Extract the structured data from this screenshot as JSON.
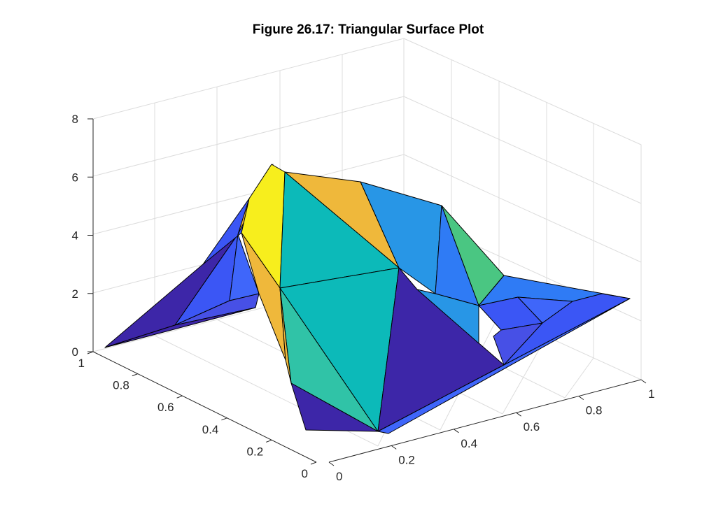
{
  "chart_data": {
    "type": "surface-3d",
    "title": "Figure 26.17: Triangular Surface Plot",
    "xlabel": "",
    "ylabel": "",
    "zlabel": "",
    "xlim": [
      0,
      1
    ],
    "ylim": [
      0,
      1
    ],
    "zlim": [
      0,
      8
    ],
    "x_ticks": [
      "0",
      "0.2",
      "0.4",
      "0.6",
      "0.8",
      "1"
    ],
    "y_ticks": [
      "0",
      "0.2",
      "0.4",
      "0.6",
      "0.8",
      "1"
    ],
    "z_ticks": [
      "0",
      "2",
      "4",
      "6",
      "8"
    ],
    "grid": true,
    "colormap": "parula",
    "colors": {
      "low": "#3d26a8",
      "mid_low": "#3b56f5",
      "mid": "#2896e6",
      "teal": "#0cbab9",
      "green": "#4ac682",
      "orange": "#efb83b",
      "high": "#f7ee1d"
    },
    "vertices": [
      {
        "id": "P0",
        "x": 0.0,
        "y": 0.95,
        "z": 0.05
      },
      {
        "id": "P1",
        "x": 0.0,
        "y": 0.0,
        "z": 0.0
      },
      {
        "id": "P2",
        "x": 0.05,
        "y": 0.0,
        "z": 0.45
      },
      {
        "id": "P3",
        "x": 0.2,
        "y": 0.75,
        "z": 6.2
      },
      {
        "id": "P4",
        "x": 0.3,
        "y": 0.7,
        "z": 5.7
      },
      {
        "id": "P5",
        "x": 0.2,
        "y": 0.4,
        "z": 2.1
      },
      {
        "id": "P6",
        "x": 0.4,
        "y": 0.5,
        "z": 2.9
      },
      {
        "id": "P7",
        "x": 0.3,
        "y": 0.0,
        "z": 0.2
      },
      {
        "id": "P8",
        "x": 0.45,
        "y": 0.2,
        "z": 0.75
      },
      {
        "id": "P9",
        "x": 0.5,
        "y": 0.25,
        "z": 0.4
      },
      {
        "id": "P10",
        "x": 0.8,
        "y": 0.1,
        "z": 0.35
      },
      {
        "id": "P11",
        "x": 1.0,
        "y": 0.1,
        "z": 0.3
      },
      {
        "id": "P12",
        "x": 1.0,
        "y": 0.85,
        "z": 0.45
      },
      {
        "id": "P13",
        "x": 0.5,
        "y": 0.9,
        "z": 1.6
      },
      {
        "id": "P14",
        "x": 0.1,
        "y": 0.85,
        "z": 1.1
      },
      {
        "id": "P15",
        "x": 0.1,
        "y": 0.95,
        "z": 0.3
      },
      {
        "id": "P16",
        "x": 0.15,
        "y": 0.8,
        "z": 4.1
      },
      {
        "id": "P17",
        "x": 0.4,
        "y": 0.85,
        "z": 3.3
      }
    ]
  }
}
